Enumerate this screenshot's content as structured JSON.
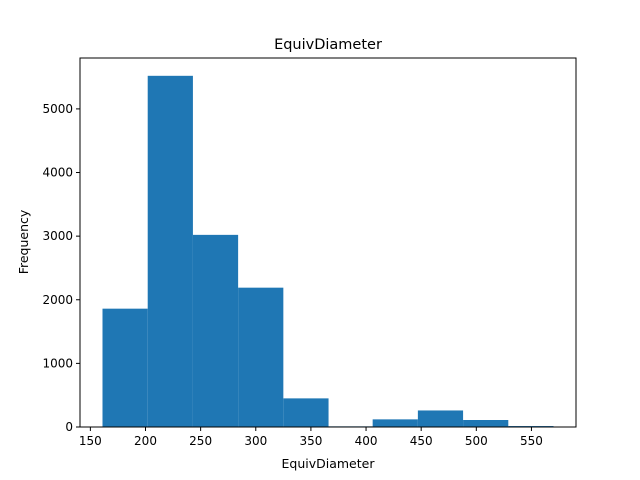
{
  "chart_data": {
    "type": "bar",
    "title": "EquivDiameter",
    "xlabel": "EquivDiameter",
    "ylabel": "Frequency",
    "bin_edges": [
      161,
      202,
      243,
      284,
      325,
      366,
      406,
      447,
      488,
      529,
      570
    ],
    "values": [
      1860,
      5520,
      3020,
      2190,
      450,
      10,
      120,
      260,
      110,
      15
    ],
    "xlim": [
      140.6,
      590.4
    ],
    "ylim": [
      0,
      5800
    ],
    "xticks": [
      150,
      200,
      250,
      300,
      350,
      400,
      450,
      500,
      550
    ],
    "yticks": [
      0,
      1000,
      2000,
      3000,
      4000,
      5000
    ],
    "color": "#1f77b4",
    "grid": false,
    "legend": false
  }
}
